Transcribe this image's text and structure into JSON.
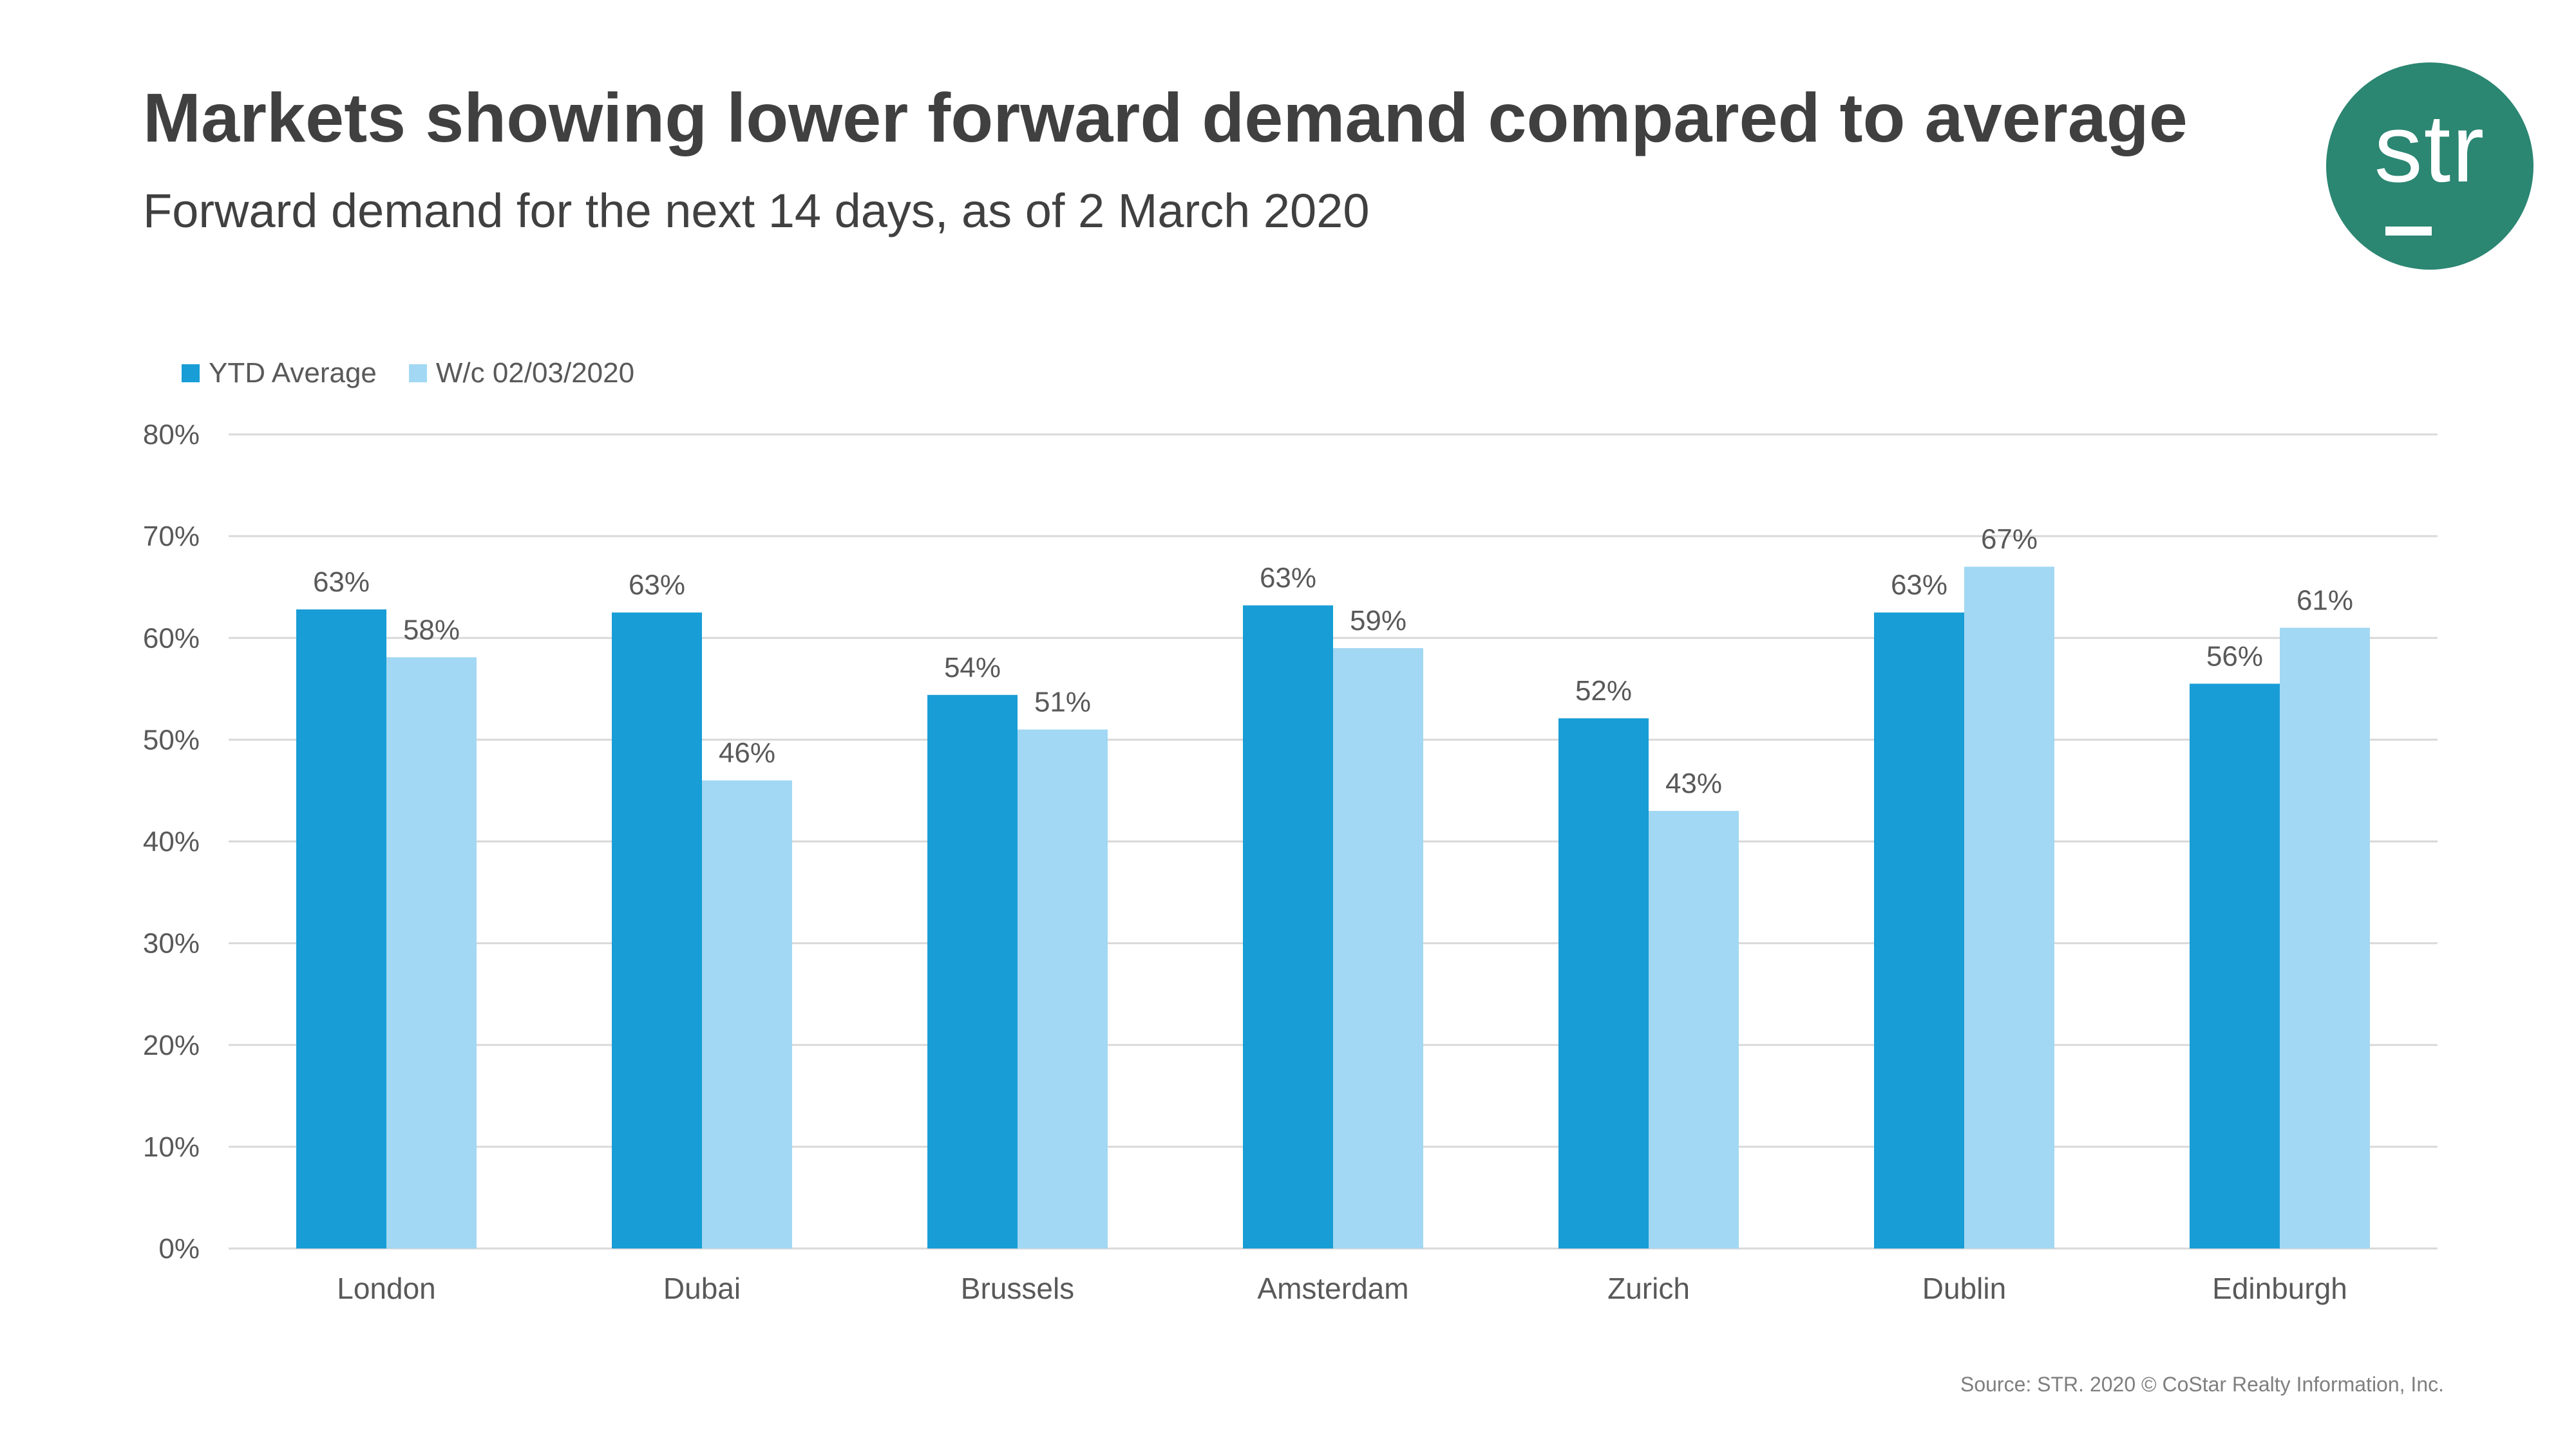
{
  "header": {
    "title": "Markets showing lower forward demand compared to average",
    "subtitle": "Forward demand for the next 14 days, as of 2 March 2020"
  },
  "logo": {
    "text": "str",
    "color": "#2b8672"
  },
  "source": "Source: STR. 2020 © CoStar Realty Information, Inc.",
  "chart_data": {
    "type": "bar",
    "title": "Markets showing lower forward demand compared to average",
    "subtitle": "Forward demand for the next 14 days, as of 2 March 2020",
    "categories": [
      "London",
      "Dubai",
      "Brussels",
      "Amsterdam",
      "Zurich",
      "Dublin",
      "Edinburgh"
    ],
    "series": [
      {
        "name": "YTD Average",
        "color": "#189dd6",
        "values": [
          62.8,
          62.5,
          54.4,
          63.2,
          52.1,
          62.5,
          55.5
        ],
        "labels": [
          "63%",
          "63%",
          "54%",
          "63%",
          "52%",
          "63%",
          "56%"
        ]
      },
      {
        "name": "W/c 02/03/2020",
        "color": "#a2d8f3",
        "values": [
          58.1,
          46.0,
          51.0,
          59.0,
          43.0,
          67.0,
          61.0
        ],
        "labels": [
          "58%",
          "46%",
          "51%",
          "59%",
          "43%",
          "67%",
          "61%"
        ]
      }
    ],
    "ylim": [
      0,
      80
    ],
    "yticks": [
      0,
      10,
      20,
      30,
      40,
      50,
      60,
      70,
      80
    ],
    "ytick_labels": [
      "0%",
      "10%",
      "20%",
      "30%",
      "40%",
      "50%",
      "60%",
      "70%",
      "80%"
    ],
    "xlabel": "",
    "ylabel": "",
    "grid": true,
    "legend": "top-left"
  }
}
